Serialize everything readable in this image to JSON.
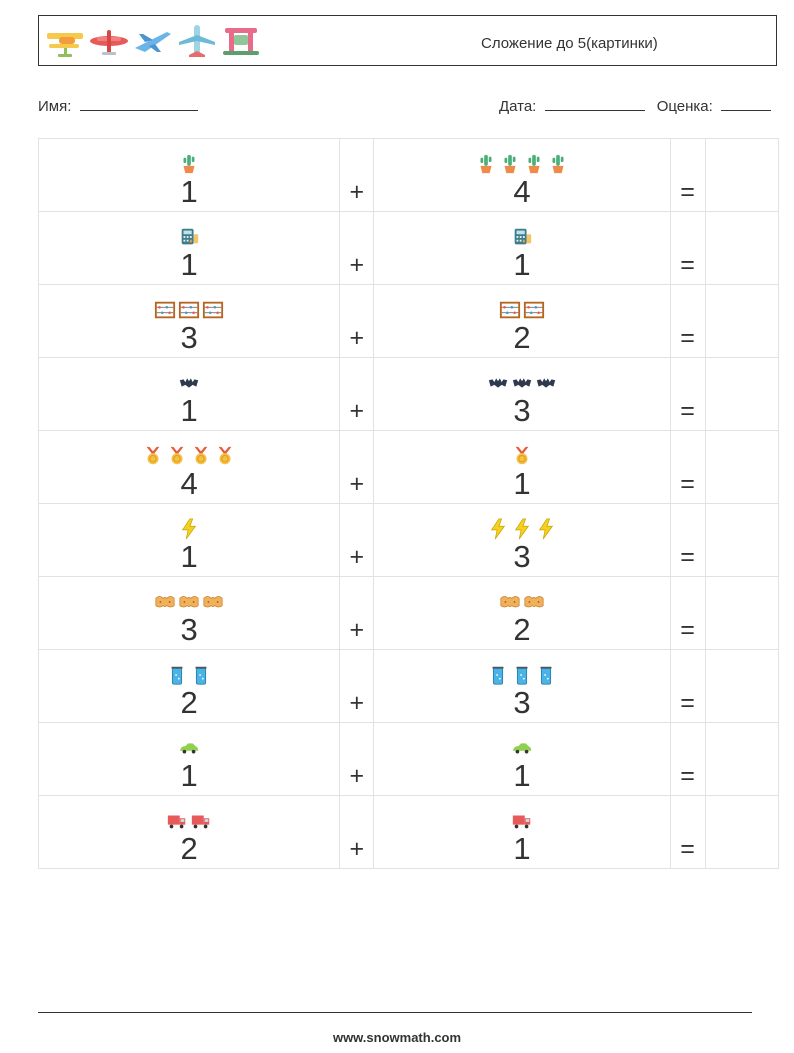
{
  "header": {
    "title": "Сложение до 5(картинки)",
    "plane_icons": [
      "yellow-biplane-icon",
      "red-plane-icon",
      "blue-jet-icon",
      "airliner-icon",
      "seaplane-icon"
    ]
  },
  "info": {
    "name_label": "Имя:",
    "date_label": "Дата:",
    "grade_label": "Оценка:"
  },
  "operators": {
    "plus": "+",
    "equals": "="
  },
  "rows": [
    {
      "icon": "cactus-icon",
      "a": "1",
      "b": "4"
    },
    {
      "icon": "calculator-icon",
      "a": "1",
      "b": "1"
    },
    {
      "icon": "abacus-icon",
      "a": "3",
      "b": "2"
    },
    {
      "icon": "bat-icon",
      "a": "1",
      "b": "3"
    },
    {
      "icon": "medal-icon",
      "a": "4",
      "b": "1"
    },
    {
      "icon": "lightning-icon",
      "a": "1",
      "b": "3"
    },
    {
      "icon": "nut-icon",
      "a": "3",
      "b": "2"
    },
    {
      "icon": "beaker-icon",
      "a": "2",
      "b": "3"
    },
    {
      "icon": "car-icon",
      "a": "1",
      "b": "1"
    },
    {
      "icon": "truck-icon",
      "a": "2",
      "b": "1"
    }
  ],
  "footer": {
    "url": "www.snowmath.com"
  }
}
